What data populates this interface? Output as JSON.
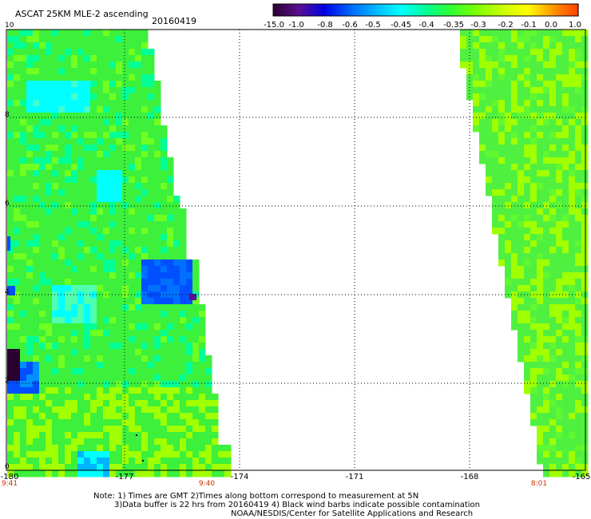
{
  "header": {
    "title": "ASCAT 25KM MLE-2 ascending",
    "date": "20160419"
  },
  "colorbar": {
    "labels": [
      "-15.0",
      "-1.0",
      "-0.8",
      "-0.6",
      "-0.5",
      "-0.45",
      "-0.4",
      "-0.35",
      "-0.3",
      "-0.2",
      "-0.1",
      "0.0",
      "1.0"
    ],
    "colors": [
      "#2a0030",
      "#5a1090",
      "#0000e6",
      "#0064ff",
      "#00b4ff",
      "#00ffff",
      "#00ff96",
      "#32ff32",
      "#7dff00",
      "#c8ff00",
      "#ffff00",
      "#ff9600",
      "#ff3c00"
    ]
  },
  "axes": {
    "y_ticks": [
      "10",
      "8",
      "6",
      "4",
      "2",
      "0"
    ],
    "x_ticks": [
      "-180",
      "-177",
      "-174",
      "-171",
      "-168",
      "-165"
    ],
    "time_ticks": [
      "9:41",
      "9:40",
      "8:01"
    ]
  },
  "notes": {
    "line1": "Note: 1) Times are GMT 2)Times along bottom correspond to measurement at 5N",
    "line2": "3)Data buffer is 22 hrs from 20160419 4) Black wind barbs indicate possible contamination",
    "line3": "NOAA/NESDIS/Center for Satellite Applications and Research"
  },
  "colors": {
    "swath_green": "#3cf03c",
    "swath_cyan": "#00ffff",
    "swath_lime": "#a0ff00",
    "swath_blue": "#0050ff",
    "swath_purple": "#2a0030",
    "grid": "#000000"
  }
}
